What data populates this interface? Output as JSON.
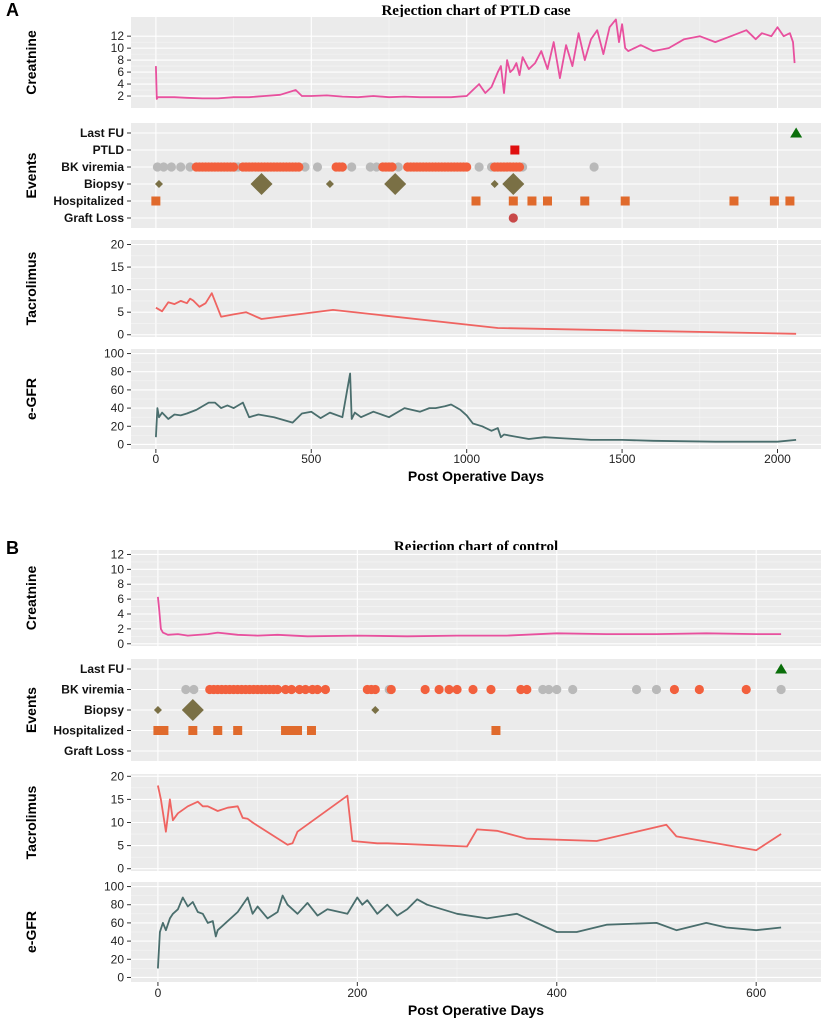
{
  "colors": {
    "creatinine": "#e8509e",
    "tacrolimus": "#ef6461",
    "egfr": "#4a6e6d",
    "bk_positive": "#f2603d",
    "bk_negative": "#b9b9b9",
    "biopsy": "#7a7045",
    "hospitalized": "#e06a2c",
    "last_fu": "#0a6e0a",
    "ptld": "#e01010",
    "graft_loss": "#c84848"
  },
  "chart_data": [
    {
      "panel_letter": "A",
      "title": "Rejection chart of PTLD case",
      "type": "line",
      "xlabel": "Post Operative Days",
      "xlim": [
        -80,
        2140
      ],
      "xticks": [
        "0",
        "500",
        "1000",
        "1500",
        "2000"
      ],
      "xtick_values": [
        0,
        500,
        1000,
        1500,
        2000
      ],
      "creatinine": {
        "ylabel": "Creatnine",
        "ylim": [
          0,
          15.2
        ],
        "yticks": [
          "2",
          "4",
          "6",
          "8",
          "10",
          "12"
        ],
        "ytick_values": [
          2,
          4,
          6,
          8,
          10,
          12
        ],
        "x": [
          0,
          3,
          6,
          20,
          60,
          100,
          150,
          200,
          250,
          300,
          350,
          400,
          450,
          470,
          500,
          550,
          600,
          650,
          700,
          750,
          800,
          850,
          900,
          950,
          1000,
          1020,
          1040,
          1060,
          1080,
          1100,
          1110,
          1120,
          1130,
          1140,
          1150,
          1160,
          1170,
          1180,
          1200,
          1220,
          1240,
          1260,
          1280,
          1300,
          1320,
          1340,
          1360,
          1380,
          1400,
          1420,
          1440,
          1460,
          1480,
          1490,
          1500,
          1510,
          1520,
          1540,
          1560,
          1600,
          1650,
          1700,
          1750,
          1800,
          1850,
          1900,
          1930,
          1950,
          1980,
          2000,
          2020,
          2040,
          2050,
          2055
        ],
        "values": [
          7,
          1.5,
          1.8,
          1.8,
          1.8,
          1.7,
          1.6,
          1.6,
          1.8,
          1.8,
          2,
          2.2,
          3,
          2,
          2,
          2.1,
          1.9,
          1.8,
          2,
          1.8,
          1.9,
          1.8,
          1.8,
          1.8,
          2,
          3,
          4,
          2.5,
          3.5,
          6,
          7,
          2.5,
          8,
          6,
          6.5,
          7.5,
          5.5,
          8.5,
          6.5,
          7.5,
          9.5,
          6.5,
          11,
          5,
          10.5,
          7,
          12.5,
          8,
          11.5,
          13,
          9,
          13.5,
          14.8,
          11,
          14,
          10,
          9.5,
          10,
          10.5,
          9.5,
          10,
          11.5,
          12,
          11,
          12,
          13,
          11.5,
          12.5,
          12,
          13.5,
          12,
          12.5,
          11,
          7.5
        ]
      },
      "events": {
        "ylabel": "Events",
        "rows": [
          "Last FU",
          "PTLD",
          "BK viremia",
          "Biopsy",
          "Hospitalized",
          "Graft Loss"
        ],
        "last_fu": [
          2060
        ],
        "ptld": [
          1155
        ],
        "graft_loss": [
          1150
        ],
        "bk_positive_ranges": [
          [
            130,
            250
          ],
          [
            280,
            460
          ],
          [
            580,
            600
          ],
          [
            730,
            760
          ],
          [
            810,
            1000
          ],
          [
            1090,
            1170
          ]
        ],
        "bk_negative": [
          5,
          25,
          50,
          80,
          110,
          255,
          265,
          480,
          520,
          600,
          630,
          690,
          710,
          760,
          780,
          1040,
          1080,
          1180,
          1410
        ],
        "biopsy_small": [
          10,
          560,
          1090
        ],
        "biopsy_large": [
          340,
          770,
          1150
        ],
        "hospitalized": [
          0,
          1030,
          1150,
          1210,
          1260,
          1380,
          1510,
          1860,
          1990,
          2040
        ]
      },
      "tacrolimus": {
        "ylabel": "Tacrolimus",
        "ylim": [
          -0.5,
          21
        ],
        "yticks": [
          "0",
          "5",
          "10",
          "15",
          "20"
        ],
        "ytick_values": [
          0,
          5,
          10,
          15,
          20
        ],
        "x": [
          0,
          20,
          40,
          60,
          80,
          100,
          110,
          120,
          140,
          160,
          180,
          210,
          250,
          290,
          340,
          570,
          1100,
          2060
        ],
        "values": [
          6,
          5.2,
          7.2,
          6.8,
          7.5,
          7,
          8,
          7.6,
          6.2,
          7,
          9.2,
          4,
          4.5,
          5,
          3.5,
          5.5,
          1.5,
          0.2
        ]
      },
      "egfr": {
        "ylabel": "e-GFR",
        "ylim": [
          -5,
          105
        ],
        "yticks": [
          "0",
          "20",
          "40",
          "60",
          "80",
          "100"
        ],
        "ytick_values": [
          0,
          20,
          40,
          60,
          80,
          100
        ],
        "x": [
          0,
          5,
          10,
          20,
          40,
          60,
          80,
          100,
          130,
          170,
          190,
          210,
          230,
          250,
          280,
          300,
          330,
          380,
          440,
          470,
          500,
          530,
          560,
          600,
          625,
          630,
          640,
          660,
          700,
          750,
          800,
          850,
          880,
          900,
          930,
          950,
          980,
          1000,
          1020,
          1050,
          1080,
          1100,
          1110,
          1120,
          1150,
          1200,
          1250,
          1300,
          1400,
          1500,
          1600,
          1800,
          2000,
          2060
        ],
        "values": [
          8,
          40,
          30,
          35,
          28,
          33,
          32,
          34,
          38,
          46,
          46,
          40,
          43,
          40,
          46,
          30,
          33,
          30,
          24,
          34,
          36,
          29,
          35,
          30,
          78,
          28,
          35,
          30,
          36,
          30,
          40,
          36,
          40,
          40,
          42,
          44,
          38,
          32,
          23,
          20,
          15,
          18,
          8,
          11,
          9,
          6,
          8,
          7,
          5,
          5,
          4,
          3,
          3,
          5
        ]
      }
    },
    {
      "panel_letter": "B",
      "title": "Rejection chart of control",
      "type": "line",
      "xlabel": "Post Operative Days",
      "xlim": [
        -27,
        665
      ],
      "xticks": [
        "0",
        "200",
        "400",
        "600"
      ],
      "xtick_values": [
        0,
        200,
        400,
        600
      ],
      "creatinine": {
        "ylabel": "Creatnine",
        "ylim": [
          -0.3,
          12.6
        ],
        "yticks": [
          "0",
          "2",
          "4",
          "6",
          "8",
          "10",
          "12"
        ],
        "ytick_values": [
          0,
          2,
          4,
          6,
          8,
          10,
          12
        ],
        "x": [
          0,
          1,
          3,
          5,
          10,
          20,
          30,
          50,
          60,
          80,
          100,
          120,
          150,
          200,
          250,
          300,
          350,
          400,
          450,
          500,
          550,
          600,
          625
        ],
        "values": [
          6.3,
          5,
          2,
          1.5,
          1.2,
          1.3,
          1.1,
          1.3,
          1.5,
          1.2,
          1.1,
          1.2,
          1,
          1.1,
          1,
          1.1,
          1.1,
          1.4,
          1.3,
          1.3,
          1.4,
          1.3,
          1.3
        ]
      },
      "events": {
        "ylabel": "Events",
        "rows": [
          "Last FU",
          "BK viremia",
          "Biopsy",
          "Hospitalized",
          "Graft Loss"
        ],
        "last_fu": [
          625
        ],
        "bk_positive": [
          52,
          56,
          60,
          64,
          68,
          72,
          76,
          80,
          84,
          88,
          92,
          96,
          100,
          104,
          108,
          112,
          116,
          120,
          128,
          134,
          142,
          148,
          155,
          160,
          168,
          210,
          214,
          218,
          234,
          268,
          282,
          292,
          300,
          316,
          334,
          364,
          370,
          518,
          543,
          590
        ],
        "bk_negative": [
          28,
          36,
          232,
          386,
          392,
          400,
          416,
          480,
          500,
          625
        ],
        "biopsy_small": [
          0,
          218
        ],
        "biopsy_large": [
          35
        ],
        "hospitalized": [
          0,
          6,
          35,
          60,
          80,
          128,
          134,
          140,
          154,
          339
        ]
      },
      "tacrolimus": {
        "ylabel": "Tacrolimus",
        "ylim": [
          -0.5,
          20.5
        ],
        "yticks": [
          "0",
          "5",
          "10",
          "15",
          "20"
        ],
        "ytick_values": [
          0,
          5,
          10,
          15,
          20
        ],
        "x": [
          0,
          3,
          8,
          12,
          15,
          20,
          30,
          40,
          45,
          50,
          60,
          70,
          80,
          85,
          90,
          95,
          130,
          135,
          140,
          190,
          195,
          220,
          230,
          310,
          320,
          340,
          370,
          440,
          510,
          520,
          600,
          625
        ],
        "values": [
          18,
          15,
          8,
          15,
          10.5,
          12,
          13.5,
          14.5,
          13.5,
          13.5,
          12.5,
          13.2,
          13.5,
          11,
          10.8,
          10,
          5.2,
          5.5,
          8,
          15.8,
          6,
          5.5,
          5.5,
          4.8,
          8.5,
          8.2,
          6.5,
          6,
          9.5,
          7,
          4,
          7.5
        ]
      },
      "egfr": {
        "ylabel": "e-GFR",
        "ylim": [
          -5,
          105
        ],
        "yticks": [
          "0",
          "20",
          "40",
          "60",
          "80",
          "100"
        ],
        "ytick_values": [
          0,
          20,
          40,
          60,
          80,
          100
        ],
        "x": [
          0,
          2,
          5,
          8,
          12,
          15,
          20,
          25,
          30,
          35,
          40,
          45,
          50,
          55,
          58,
          60,
          80,
          90,
          95,
          100,
          110,
          120,
          125,
          130,
          140,
          150,
          160,
          170,
          190,
          200,
          205,
          210,
          220,
          230,
          240,
          250,
          260,
          270,
          300,
          330,
          360,
          400,
          420,
          450,
          500,
          520,
          550,
          570,
          600,
          625
        ],
        "values": [
          10,
          50,
          60,
          52,
          65,
          70,
          75,
          88,
          78,
          83,
          72,
          70,
          60,
          62,
          45,
          52,
          72,
          88,
          70,
          78,
          65,
          72,
          90,
          80,
          70,
          82,
          68,
          75,
          70,
          88,
          80,
          85,
          70,
          80,
          68,
          75,
          86,
          80,
          70,
          65,
          70,
          50,
          50,
          58,
          60,
          52,
          60,
          55,
          52,
          55
        ]
      }
    }
  ]
}
